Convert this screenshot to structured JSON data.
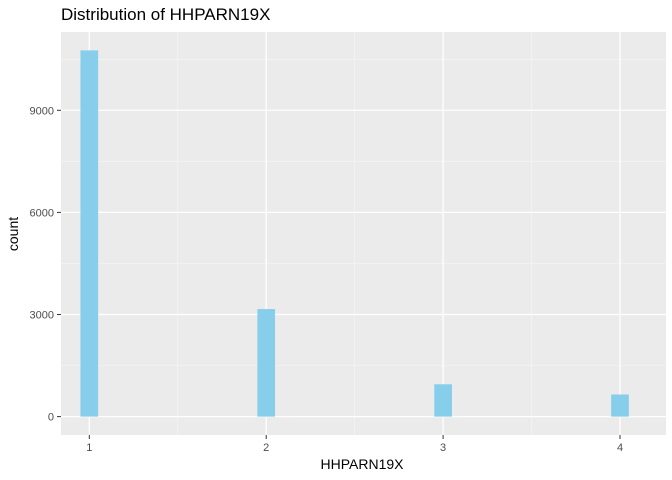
{
  "chart_data": {
    "type": "bar",
    "title": "Distribution of HHPARN19X",
    "xlabel": "HHPARN19X",
    "ylabel": "count",
    "categories": [
      "1",
      "2",
      "3",
      "4"
    ],
    "x": [
      1,
      2,
      3,
      4
    ],
    "values": [
      10760,
      3160,
      950,
      650
    ],
    "x_ticks": [
      1,
      2,
      3,
      4
    ],
    "x_tick_labels": [
      "1",
      "2",
      "3",
      "4"
    ],
    "y_ticks": [
      0,
      3000,
      6000,
      9000
    ],
    "y_tick_labels": [
      "0",
      "3000",
      "6000",
      "9000"
    ],
    "xlim": [
      0.84,
      4.26
    ],
    "ylim": [
      -540,
      11300
    ],
    "grid": true,
    "legend": "none",
    "colors": {
      "bar": "#87CEEB",
      "panel": "#EBEBEB",
      "grid_major": "#FFFFFF",
      "grid_minor": "#F5F5F5",
      "tick": "#333333"
    }
  }
}
